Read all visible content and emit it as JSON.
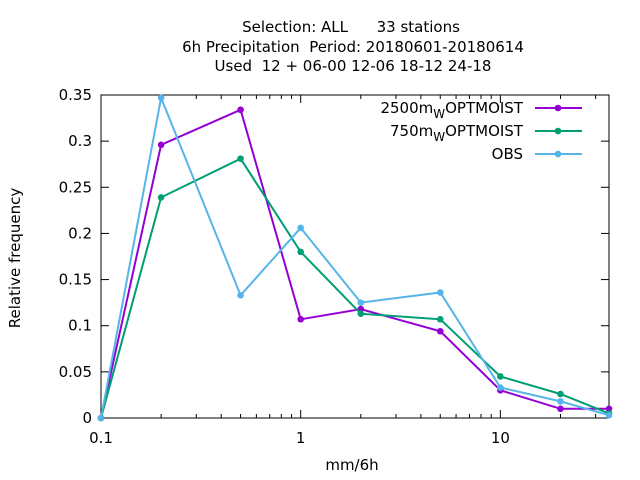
{
  "chart_data": {
    "type": "line",
    "title_lines": [
      "Selection: ALL      33 stations",
      "6h Precipitation  Period: 20180601-20180614",
      "Used  12 + 06-00 12-06 18-12 24-18"
    ],
    "xlabel": "mm/6h",
    "ylabel": "Relative frequency",
    "x_scale": "log",
    "xlim": [
      0.1,
      35
    ],
    "ylim": [
      0,
      0.35
    ],
    "x_ticks": [
      {
        "value": 0.1,
        "label": "0.1"
      },
      {
        "value": 1,
        "label": "1"
      },
      {
        "value": 10,
        "label": "10"
      }
    ],
    "y_ticks": [
      {
        "value": 0,
        "label": "0"
      },
      {
        "value": 0.05,
        "label": "0.05"
      },
      {
        "value": 0.1,
        "label": "0.1"
      },
      {
        "value": 0.15,
        "label": "0.15"
      },
      {
        "value": 0.2,
        "label": "0.2"
      },
      {
        "value": 0.25,
        "label": "0.25"
      },
      {
        "value": 0.3,
        "label": "0.3"
      },
      {
        "value": 0.35,
        "label": "0.35"
      }
    ],
    "grid": false,
    "legend_position": "top-right",
    "x": [
      0.1,
      0.2,
      0.5,
      1,
      2,
      5,
      10,
      20,
      35
    ],
    "series": [
      {
        "name_main": "2500m",
        "name_sub": "W",
        "name_rest": "OPTMOIST",
        "color": "#9400d3",
        "values": [
          0,
          0.296,
          0.334,
          0.107,
          0.118,
          0.094,
          0.03,
          0.01,
          0.01
        ]
      },
      {
        "name_main": "750m",
        "name_sub": "W",
        "name_rest": "OPTMOIST",
        "color": "#009e73",
        "values": [
          0,
          0.239,
          0.281,
          0.18,
          0.113,
          0.107,
          0.045,
          0.026,
          0.005
        ]
      },
      {
        "name_main": "OBS",
        "name_sub": "",
        "name_rest": "",
        "color": "#56b4e9",
        "values": [
          0,
          0.347,
          0.133,
          0.206,
          0.125,
          0.136,
          0.033,
          0.018,
          0.003
        ]
      }
    ]
  }
}
